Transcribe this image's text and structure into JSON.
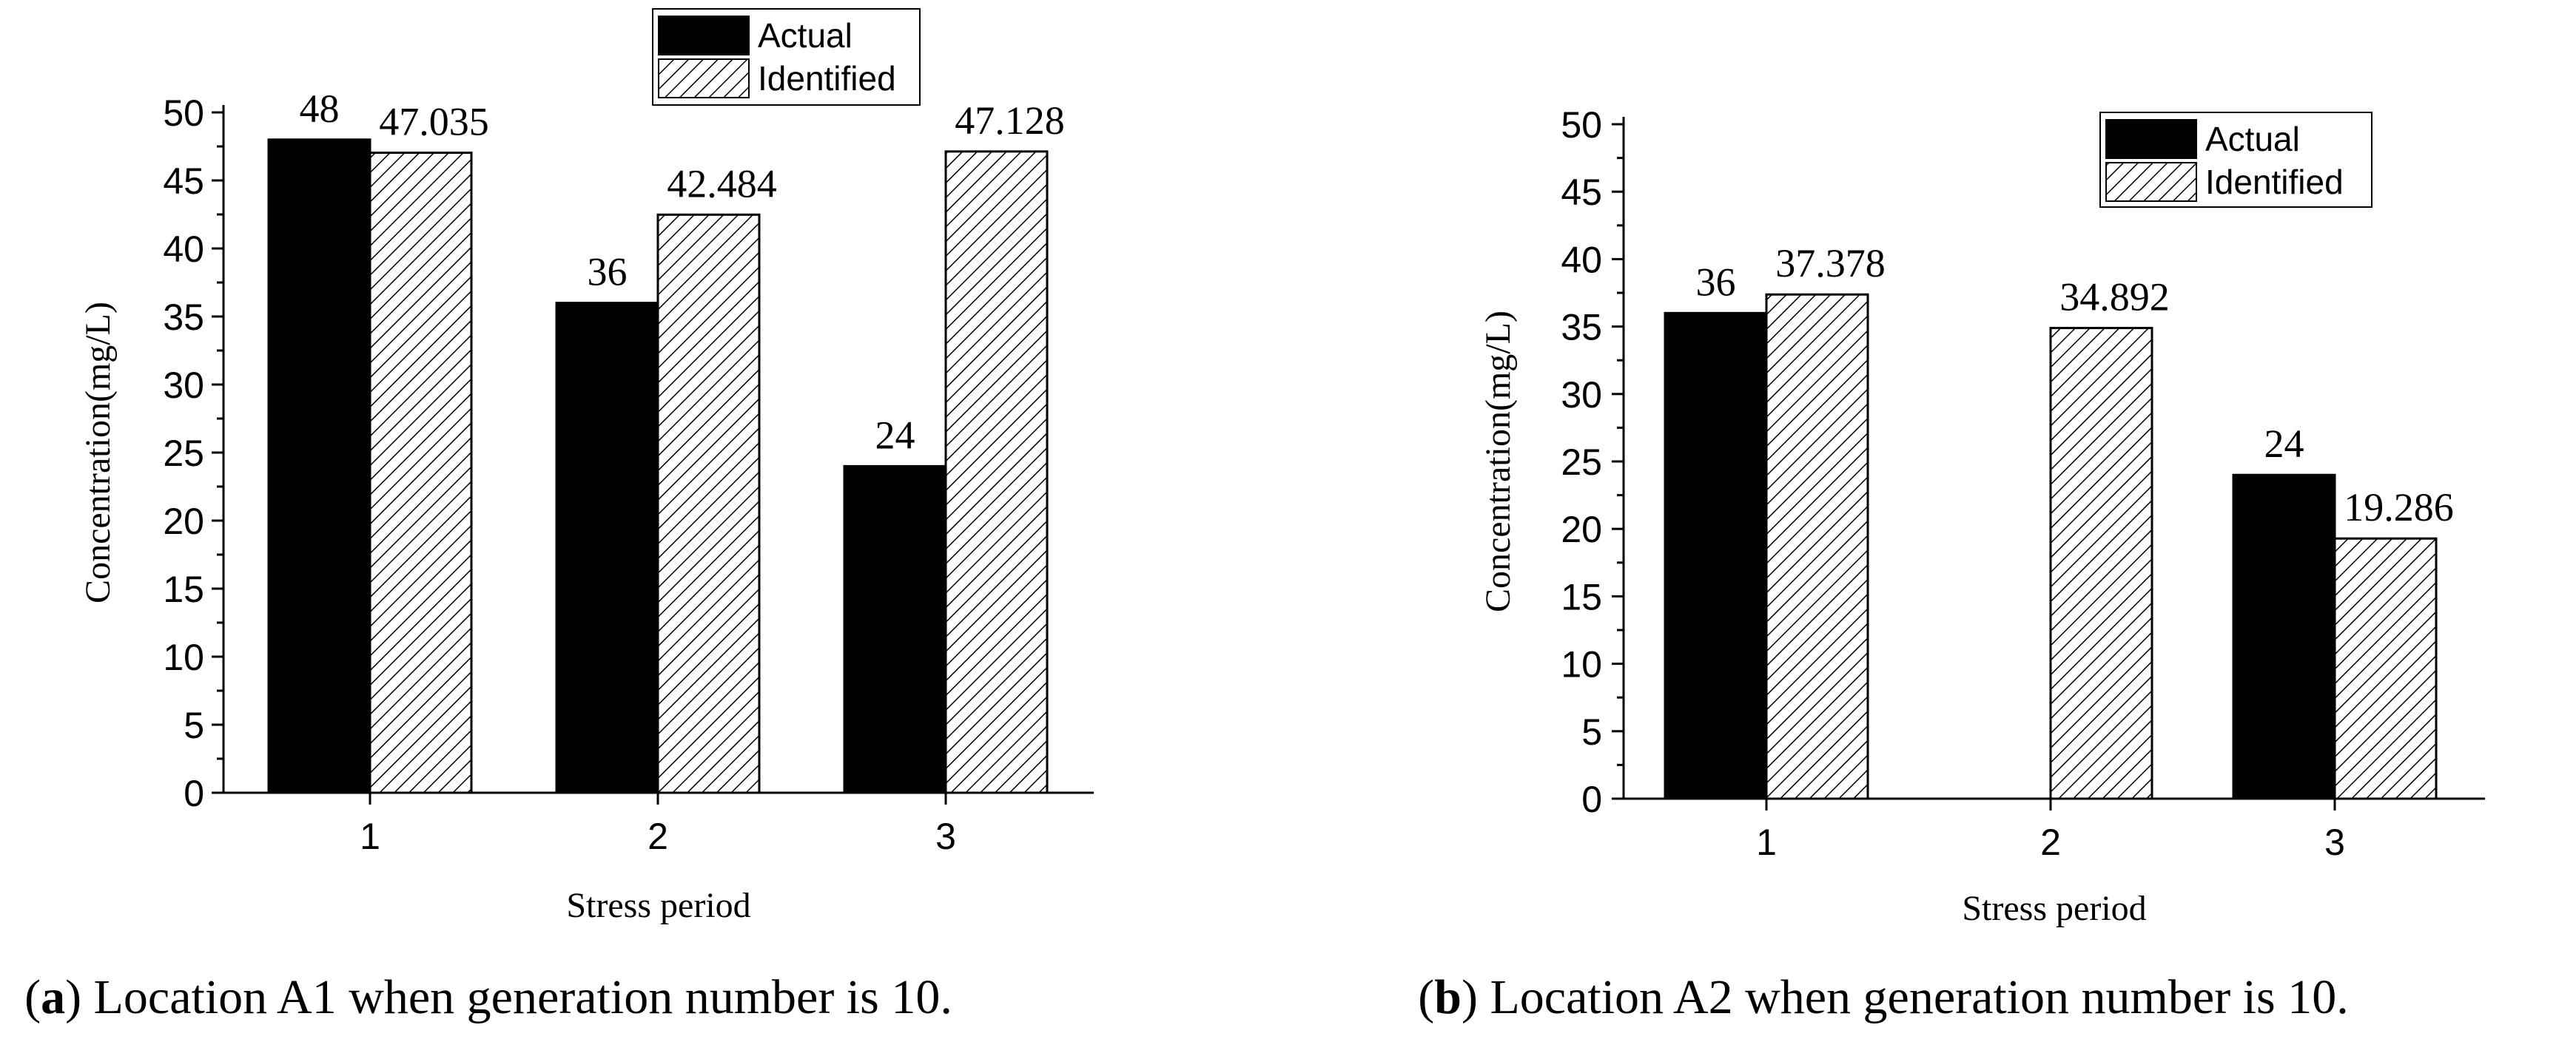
{
  "chart_data": [
    {
      "type": "bar",
      "panel_label": "a",
      "caption": "Location A1 when generation number is 10.",
      "categories": [
        "1",
        "2",
        "3"
      ],
      "series": [
        {
          "name": "Actual",
          "values": [
            48,
            36,
            24
          ],
          "labels": [
            "48",
            "36",
            "24"
          ],
          "fill": "solid",
          "color": "#000000"
        },
        {
          "name": "Identified",
          "values": [
            47.035,
            42.484,
            47.128
          ],
          "labels": [
            "47.035",
            "42.484",
            "47.128"
          ],
          "fill": "hatched",
          "color": "#ffffff"
        }
      ],
      "xlabel": "Stress period",
      "ylabel": "Concentration(mg/L)",
      "ylim": [
        0,
        50
      ],
      "yticks": [
        "0",
        "5",
        "10",
        "15",
        "20",
        "25",
        "30",
        "35",
        "40",
        "45",
        "50"
      ],
      "legend": "top-center",
      "grid": false
    },
    {
      "type": "bar",
      "panel_label": "b",
      "caption": "Location A2 when generation number is 10.",
      "categories": [
        "1",
        "2",
        "3"
      ],
      "series": [
        {
          "name": "Actual",
          "values": [
            36,
            0,
            24
          ],
          "labels": [
            "36",
            "",
            "24"
          ],
          "fill": "solid",
          "color": "#000000"
        },
        {
          "name": "Identified",
          "values": [
            37.378,
            34.892,
            19.286
          ],
          "labels": [
            "37.378",
            "34.892",
            "19.286"
          ],
          "fill": "hatched",
          "color": "#ffffff"
        }
      ],
      "xlabel": "Stress period",
      "ylabel": "Concentration(mg/L)",
      "ylim": [
        0,
        50
      ],
      "yticks": [
        "0",
        "5",
        "10",
        "15",
        "20",
        "25",
        "30",
        "35",
        "40",
        "45",
        "50"
      ],
      "legend": "top-right",
      "grid": false
    }
  ]
}
